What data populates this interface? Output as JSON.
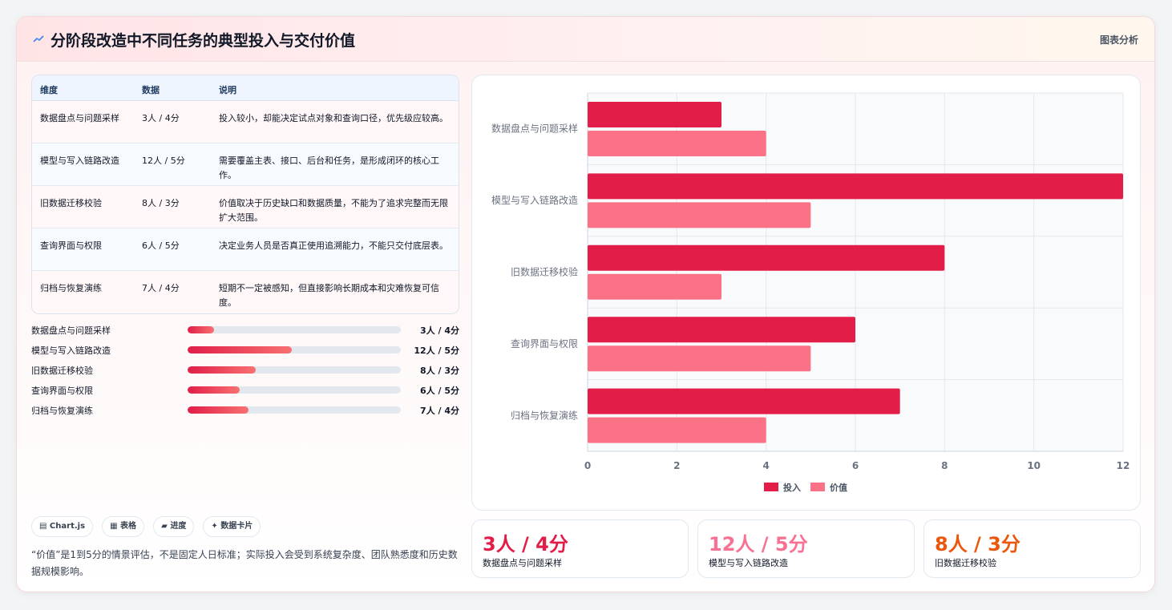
{
  "header": {
    "title": "分阶段改造中不同任务的典型投入与交付价值",
    "tag": "图表分析"
  },
  "colors": {
    "invest": "#e11d48",
    "value": "#fb7185",
    "stat1": "#e11d48",
    "stat2": "#f87192",
    "stat3": "#ea580c"
  },
  "table": {
    "headers": [
      "维度",
      "数据",
      "说明"
    ],
    "rows": [
      {
        "dim": "数据盘点与问题采样",
        "data": "3人 / 4分",
        "desc": "投入较小，却能决定试点对象和查询口径，优先级应较高。"
      },
      {
        "dim": "模型与写入链路改造",
        "data": "12人 / 5分",
        "desc": "需要覆盖主表、接口、后台和任务，是形成闭环的核心工作。"
      },
      {
        "dim": "旧数据迁移校验",
        "data": "8人 / 3分",
        "desc": "价值取决于历史缺口和数据质量，不能为了追求完整而无限扩大范围。"
      },
      {
        "dim": "查询界面与权限",
        "data": "6人 / 5分",
        "desc": "决定业务人员是否真正使用追溯能力，不能只交付底层表。"
      },
      {
        "dim": "归档与恢复演练",
        "data": "7人 / 4分",
        "desc": "短期不一定被感知，但直接影响长期成本和灾难恢复可信度。"
      }
    ]
  },
  "progress": [
    {
      "label": "数据盘点与问题采样",
      "value": "3人 / 4分",
      "fraction": 0.125
    },
    {
      "label": "模型与写入链路改造",
      "value": "12人 / 5分",
      "fraction": 0.49
    },
    {
      "label": "旧数据迁移校验",
      "value": "8人 / 3分",
      "fraction": 0.32
    },
    {
      "label": "查询界面与权限",
      "value": "6人 / 5分",
      "fraction": 0.245
    },
    {
      "label": "归档与恢复演练",
      "value": "7人 / 4分",
      "fraction": 0.285
    }
  ],
  "chips": [
    "▤ Chart.js",
    "▦ 表格",
    "▰ 进度",
    "✦ 数据卡片"
  ],
  "note": "“价值”是1到5分的情景评估，不是固定人日标准；实际投入会受到系统复杂度、团队熟悉度和历史数据规模影响。",
  "stats": [
    {
      "value": "3人 / 4分",
      "label": "数据盘点与问题采样"
    },
    {
      "value": "12人 / 5分",
      "label": "模型与写入链路改造"
    },
    {
      "value": "8人 / 3分",
      "label": "旧数据迁移校验"
    }
  ],
  "chart_data": {
    "type": "bar",
    "orientation": "horizontal",
    "categories": [
      "数据盘点与问题采样",
      "模型与写入链路改造",
      "旧数据迁移校验",
      "查询界面与权限",
      "归档与恢复演练"
    ],
    "series": [
      {
        "name": "投入",
        "values": [
          3,
          12,
          8,
          6,
          7
        ]
      },
      {
        "name": "价值",
        "values": [
          4,
          5,
          3,
          5,
          4
        ]
      }
    ],
    "xlim": [
      0,
      12
    ],
    "xticks": [
      0,
      2,
      4,
      6,
      8,
      10,
      12
    ],
    "grid": true,
    "legend": "bottom"
  }
}
